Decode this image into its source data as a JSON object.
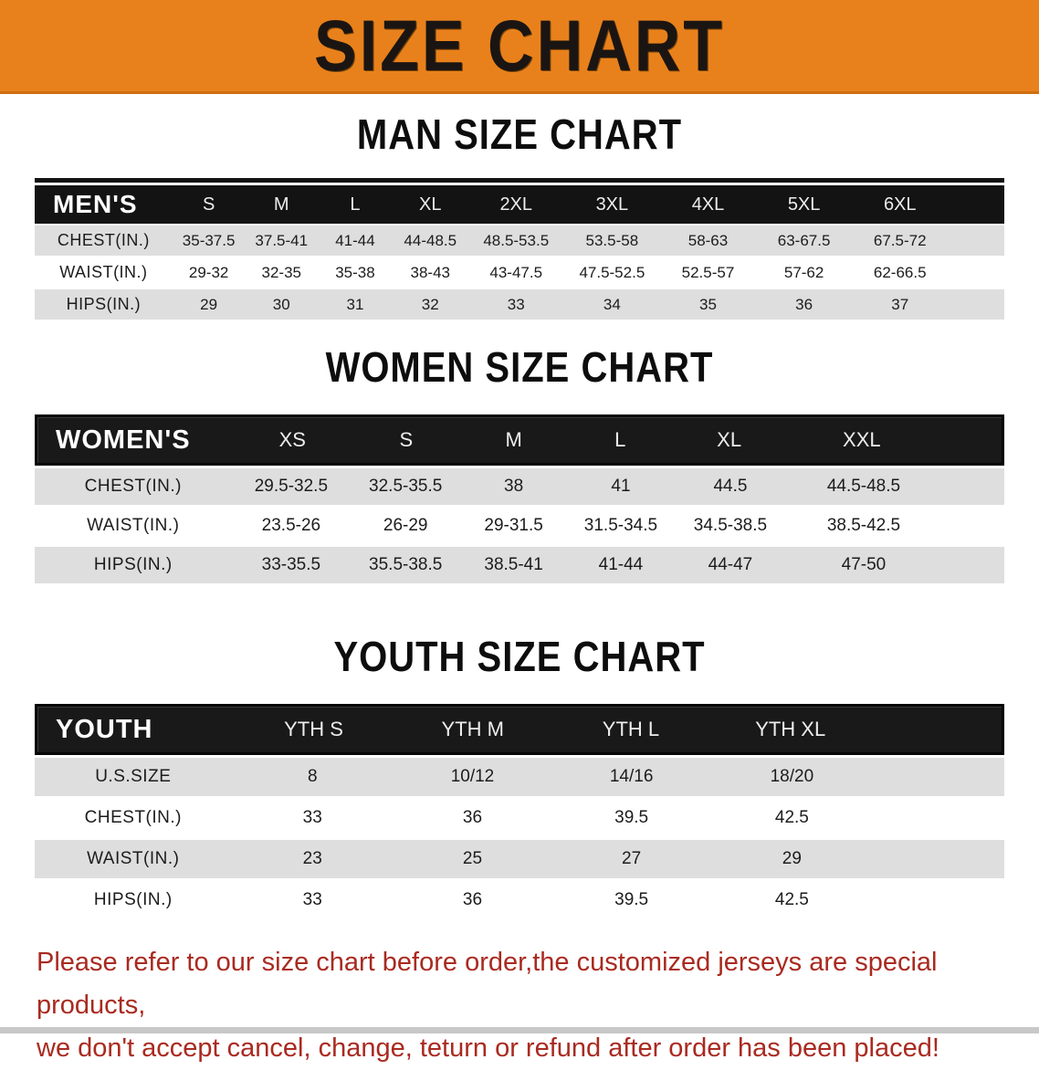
{
  "banner": {
    "title": "SIZE CHART",
    "bg_color": "#e8811c",
    "text_color": "#1a1512"
  },
  "chart_data": [
    {
      "type": "table",
      "title": "MAN SIZE CHART",
      "header": {
        "label": "MEN'S",
        "columns": [
          "S",
          "M",
          "L",
          "XL",
          "2XL",
          "3XL",
          "4XL",
          "5XL",
          "6XL"
        ]
      },
      "rows": [
        {
          "label": "CHEST(IN.)",
          "values": [
            "35-37.5",
            "37.5-41",
            "41-44",
            "44-48.5",
            "48.5-53.5",
            "53.5-58",
            "58-63",
            "63-67.5",
            "67.5-72"
          ]
        },
        {
          "label": "WAIST(IN.)",
          "values": [
            "29-32",
            "32-35",
            "35-38",
            "38-43",
            "43-47.5",
            "47.5-52.5",
            "52.5-57",
            "57-62",
            "62-66.5"
          ]
        },
        {
          "label": "HIPS(IN.)",
          "values": [
            "29",
            "30",
            "31",
            "32",
            "33",
            "34",
            "35",
            "36",
            "37"
          ]
        }
      ]
    },
    {
      "type": "table",
      "title": "WOMEN SIZE CHART",
      "header": {
        "label": "WOMEN'S",
        "columns": [
          "XS",
          "S",
          "M",
          "L",
          "XL",
          "XXL"
        ]
      },
      "rows": [
        {
          "label": "CHEST(IN.)",
          "values": [
            "29.5-32.5",
            "32.5-35.5",
            "38",
            "41",
            "44.5",
            "44.5-48.5"
          ]
        },
        {
          "label": "WAIST(IN.)",
          "values": [
            "23.5-26",
            "26-29",
            "29-31.5",
            "31.5-34.5",
            "34.5-38.5",
            "38.5-42.5"
          ]
        },
        {
          "label": "HIPS(IN.)",
          "values": [
            "33-35.5",
            "35.5-38.5",
            "38.5-41",
            "41-44",
            "44-47",
            "47-50"
          ]
        }
      ]
    },
    {
      "type": "table",
      "title": "YOUTH SIZE CHART",
      "header": {
        "label": "YOUTH",
        "columns": [
          "YTH S",
          "YTH M",
          "YTH L",
          "YTH XL"
        ]
      },
      "rows": [
        {
          "label": "U.S.SIZE",
          "values": [
            "8",
            "10/12",
            "14/16",
            "18/20"
          ]
        },
        {
          "label": "CHEST(IN.)",
          "values": [
            "33",
            "36",
            "39.5",
            "42.5"
          ]
        },
        {
          "label": "WAIST(IN.)",
          "values": [
            "23",
            "25",
            "27",
            "29"
          ]
        },
        {
          "label": "HIPS(IN.)",
          "values": [
            "33",
            "36",
            "39.5",
            "42.5"
          ]
        }
      ]
    }
  ],
  "disclaimer": {
    "line1": "Please refer to our size chart before order,the customized jerseys are special products,",
    "line2": "we don't accept cancel, change, teturn or refund after order has been placed!",
    "color": "#a92a20"
  },
  "style_colors": {
    "table_header_bg": "#131313",
    "row_gray": "#dedede",
    "row_white": "#ffffff"
  }
}
